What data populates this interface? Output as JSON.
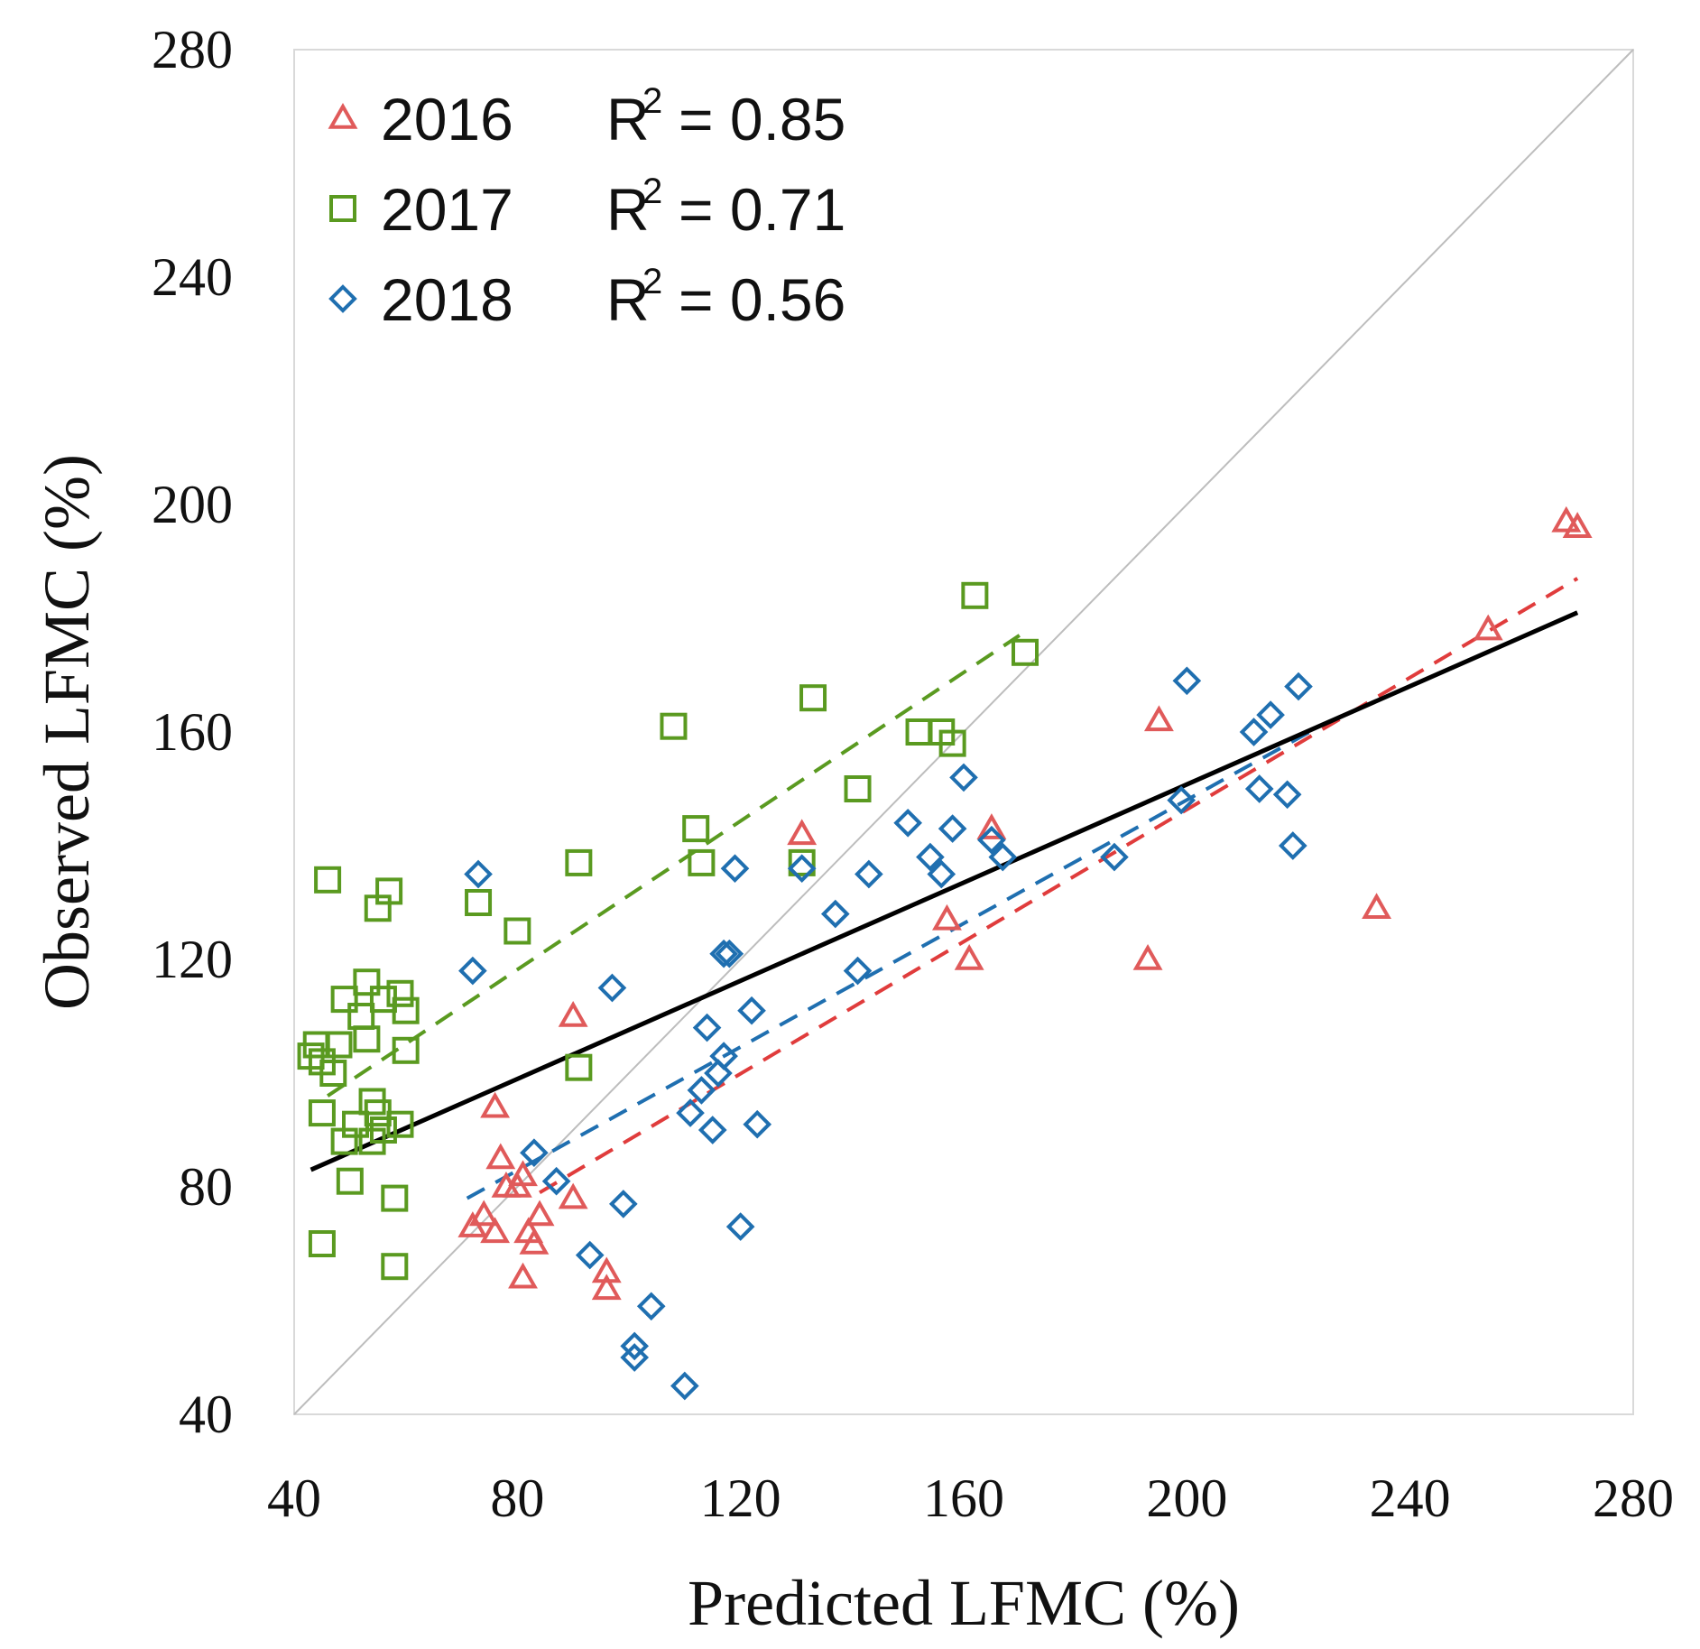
{
  "chart_data": {
    "type": "scatter",
    "xlabel": "Predicted LFMC (%)",
    "ylabel": "Observed LFMC (%)",
    "xlim": [
      40,
      280
    ],
    "ylim": [
      40,
      280
    ],
    "xticks": [
      "40",
      "80",
      "120",
      "160",
      "200",
      "240",
      "280"
    ],
    "yticks": [
      "40",
      "80",
      "120",
      "160",
      "200",
      "240",
      "280"
    ],
    "grid": false,
    "legend_position": "top-left",
    "one_to_one_line": true,
    "series": [
      {
        "name": "2016",
        "r2_label": "R",
        "r2_sup": "2",
        "r2_value": "= 0.85",
        "marker": "triangle",
        "color": "#e05a5a",
        "trend_color": "#e03c3c",
        "trend": [
          [
            84,
            79
          ],
          [
            270,
            187
          ]
        ],
        "points": [
          [
            72,
            73
          ],
          [
            74,
            75
          ],
          [
            76,
            72
          ],
          [
            76,
            94
          ],
          [
            77,
            85
          ],
          [
            78,
            80
          ],
          [
            80,
            80
          ],
          [
            81,
            64
          ],
          [
            81,
            82
          ],
          [
            82,
            72
          ],
          [
            83,
            70
          ],
          [
            84,
            75
          ],
          [
            90,
            78
          ],
          [
            90,
            110
          ],
          [
            96,
            62
          ],
          [
            96,
            65
          ],
          [
            131,
            142
          ],
          [
            157,
            127
          ],
          [
            161,
            120
          ],
          [
            165,
            143
          ],
          [
            193,
            120
          ],
          [
            195,
            162
          ],
          [
            234,
            129
          ],
          [
            254,
            178
          ],
          [
            268,
            197
          ],
          [
            270,
            196
          ]
        ]
      },
      {
        "name": "2017",
        "r2_label": "R",
        "r2_sup": "2",
        "r2_value": "= 0.71",
        "marker": "square",
        "color": "#5a9a20",
        "trend_color": "#5a9a20",
        "trend": [
          [
            46,
            96
          ],
          [
            170,
            177
          ]
        ],
        "points": [
          [
            43,
            103
          ],
          [
            44,
            105
          ],
          [
            45,
            93
          ],
          [
            45,
            102
          ],
          [
            45,
            70
          ],
          [
            46,
            134
          ],
          [
            47,
            100
          ],
          [
            48,
            105
          ],
          [
            49,
            88
          ],
          [
            49,
            113
          ],
          [
            50,
            81
          ],
          [
            51,
            91
          ],
          [
            52,
            110
          ],
          [
            53,
            116
          ],
          [
            53,
            106
          ],
          [
            54,
            95
          ],
          [
            54,
            88
          ],
          [
            55,
            93
          ],
          [
            56,
            113
          ],
          [
            55,
            129
          ],
          [
            56,
            90
          ],
          [
            57,
            132
          ],
          [
            58,
            66
          ],
          [
            58,
            78
          ],
          [
            59,
            114
          ],
          [
            59,
            91
          ],
          [
            60,
            111
          ],
          [
            60,
            104
          ],
          [
            73,
            130
          ],
          [
            80,
            125
          ],
          [
            91,
            137
          ],
          [
            91,
            101
          ],
          [
            108,
            161
          ],
          [
            112,
            143
          ],
          [
            113,
            137
          ],
          [
            131,
            137
          ],
          [
            133,
            166
          ],
          [
            141,
            150
          ],
          [
            152,
            160
          ],
          [
            156,
            160
          ],
          [
            158,
            158
          ],
          [
            162,
            184
          ],
          [
            171,
            174
          ]
        ]
      },
      {
        "name": "2018",
        "r2_label": "R",
        "r2_sup": "2",
        "r2_value": "= 0.56",
        "marker": "diamond",
        "color": "#1f6fb0",
        "trend_color": "#1f6fb0",
        "trend": [
          [
            71,
            78
          ],
          [
            222,
            160
          ]
        ],
        "points": [
          [
            72,
            118
          ],
          [
            73,
            135
          ],
          [
            83,
            86
          ],
          [
            87,
            81
          ],
          [
            93,
            68
          ],
          [
            97,
            115
          ],
          [
            99,
            77
          ],
          [
            101,
            50
          ],
          [
            101,
            52
          ],
          [
            104,
            59
          ],
          [
            110,
            45
          ],
          [
            111,
            93
          ],
          [
            113,
            97
          ],
          [
            114,
            108
          ],
          [
            115,
            90
          ],
          [
            116,
            100
          ],
          [
            117,
            103
          ],
          [
            117,
            121
          ],
          [
            118,
            121
          ],
          [
            119,
            136
          ],
          [
            120,
            73
          ],
          [
            122,
            111
          ],
          [
            123,
            91
          ],
          [
            131,
            136
          ],
          [
            137,
            128
          ],
          [
            141,
            118
          ],
          [
            143,
            135
          ],
          [
            150,
            144
          ],
          [
            154,
            138
          ],
          [
            156,
            135
          ],
          [
            158,
            143
          ],
          [
            160,
            152
          ],
          [
            165,
            141
          ],
          [
            167,
            138
          ],
          [
            187,
            138
          ],
          [
            199,
            148
          ],
          [
            200,
            169
          ],
          [
            212,
            160
          ],
          [
            213,
            150
          ],
          [
            215,
            163
          ],
          [
            218,
            149
          ],
          [
            219,
            140
          ],
          [
            220,
            168
          ]
        ]
      }
    ],
    "overall_trend": {
      "color": "#000000",
      "line": [
        [
          43,
          83
        ],
        [
          270,
          181
        ]
      ]
    }
  }
}
